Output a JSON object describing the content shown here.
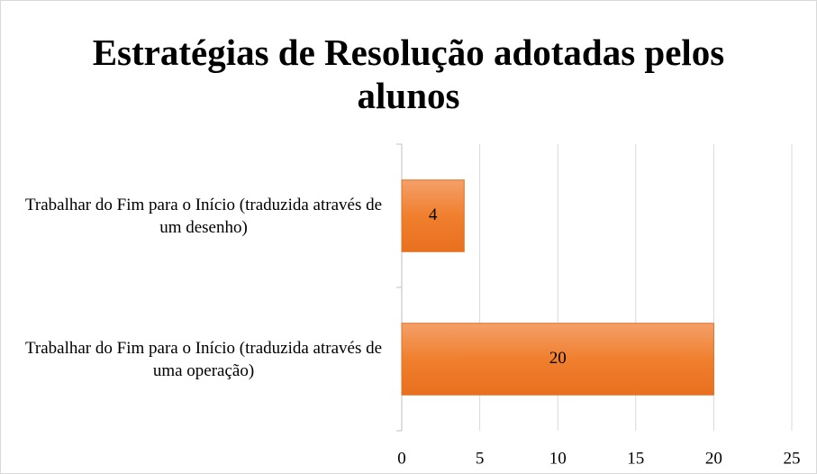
{
  "chart_data": {
    "type": "bar",
    "orientation": "horizontal",
    "title": "Estratégias de Resolução adotadas pelos alunos",
    "categories": [
      "Trabalhar do Fim para o Início (traduzida através de um desenho)",
      "Trabalhar do Fim para o Início (traduzida através de uma operação)"
    ],
    "values": [
      4,
      20
    ],
    "color": "#ed7d31",
    "xlim": [
      0,
      25
    ],
    "xticks": [
      0,
      5,
      10,
      15,
      20,
      25
    ],
    "grid": true
  }
}
